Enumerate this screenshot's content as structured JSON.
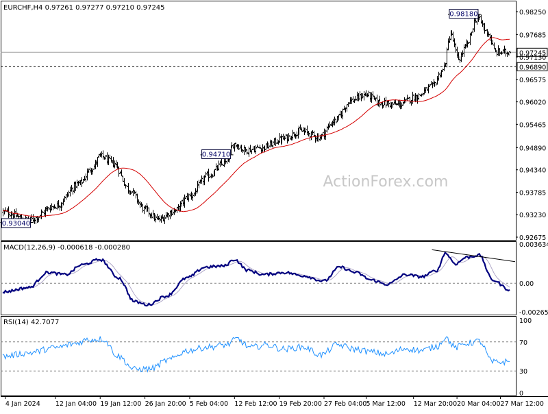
{
  "colors": {
    "background": "#ffffff",
    "frame": "#000000",
    "bars": "#000000",
    "moving_average": "#d40000",
    "macd_main": "#00007f",
    "macd_signal": "#b0a8c8",
    "rsi": "#1e90ff",
    "level_lines": "#808080",
    "watermark": "#c8c8c8"
  },
  "chart_data": [
    {
      "type": "line",
      "pane": "price",
      "title": "EURCHF,H4  0.97261 0.97277 0.97210 0.97245",
      "watermark": "ActionForex.com",
      "ylim": [
        0.92675,
        0.9825
      ],
      "yticks": [
        "0.98250",
        "0.97685",
        "0.97245",
        "0.97130",
        "0.96890",
        "0.96575",
        "0.96020",
        "0.95465",
        "0.94890",
        "0.94340",
        "0.93785",
        "0.93230",
        "0.92675"
      ],
      "current_price": {
        "value": 0.97245,
        "label": "0.97245"
      },
      "horizontal_level": {
        "value": 0.9689,
        "label": "0.96890",
        "style": "dashed"
      },
      "annotations": [
        {
          "label": "0.94710",
          "value": 0.9471,
          "at": "19 Jan 2024"
        },
        {
          "label": "0.93040",
          "value": 0.9304,
          "at": "29 Jan 2024"
        },
        {
          "label": "0.98180",
          "value": 0.9818,
          "at": "22 Mar 2024"
        }
      ],
      "anchors": [
        [
          0,
          0.933
        ],
        [
          20,
          0.931
        ],
        [
          40,
          0.9345
        ],
        [
          58,
          0.94
        ],
        [
          68,
          0.944
        ],
        [
          74,
          0.9468
        ],
        [
          84,
          0.945
        ],
        [
          96,
          0.9385
        ],
        [
          108,
          0.9335
        ],
        [
          118,
          0.931
        ],
        [
          130,
          0.9332
        ],
        [
          142,
          0.937
        ],
        [
          156,
          0.942
        ],
        [
          168,
          0.945
        ],
        [
          176,
          0.9498
        ],
        [
          184,
          0.9482
        ],
        [
          198,
          0.949
        ],
        [
          212,
          0.951
        ],
        [
          226,
          0.953
        ],
        [
          240,
          0.9515
        ],
        [
          252,
          0.9555
        ],
        [
          264,
          0.9605
        ],
        [
          276,
          0.962
        ],
        [
          286,
          0.96
        ],
        [
          300,
          0.9595
        ],
        [
          314,
          0.9615
        ],
        [
          326,
          0.964
        ],
        [
          334,
          0.968
        ],
        [
          340,
          0.977
        ],
        [
          346,
          0.9708
        ],
        [
          352,
          0.974
        ],
        [
          360,
          0.981
        ],
        [
          368,
          0.9775
        ],
        [
          374,
          0.9725
        ],
        [
          385,
          0.9724
        ]
      ],
      "ma_series": {
        "name": "",
        "period_bars": 36
      }
    },
    {
      "type": "line",
      "pane": "macd",
      "title": "MACD(12,26,9) -0.000618 -0.000280",
      "ylim": [
        -0.002652,
        0.003634
      ],
      "yticks": [
        "0.003634",
        "0.00",
        "-0.002652"
      ],
      "series": [
        {
          "name": "MACD",
          "anchors": [
            [
              0,
              -0.0008
            ],
            [
              20,
              -0.0004
            ],
            [
              34,
              0.001
            ],
            [
              48,
              0.0008
            ],
            [
              60,
              0.0017
            ],
            [
              74,
              0.0022
            ],
            [
              88,
              0.0005
            ],
            [
              100,
              -0.0017
            ],
            [
              110,
              -0.002
            ],
            [
              124,
              -0.0012
            ],
            [
              140,
              0.0005
            ],
            [
              154,
              0.0015
            ],
            [
              168,
              0.0016
            ],
            [
              176,
              0.0022
            ],
            [
              186,
              0.0012
            ],
            [
              198,
              0.0008
            ],
            [
              214,
              0.001
            ],
            [
              228,
              0.0007
            ],
            [
              244,
              0.0002
            ],
            [
              256,
              0.0015
            ],
            [
              268,
              0.001
            ],
            [
              280,
              0.0003
            ],
            [
              292,
              -0.0001
            ],
            [
              306,
              0.0008
            ],
            [
              318,
              0.0006
            ],
            [
              330,
              0.0012
            ],
            [
              336,
              0.0028
            ],
            [
              344,
              0.0018
            ],
            [
              352,
              0.0024
            ],
            [
              362,
              0.0026
            ],
            [
              372,
              0.0003
            ],
            [
              385,
              -0.0006
            ]
          ]
        },
        {
          "name": "Signal",
          "lag_bars": 9
        }
      ],
      "trendline": {
        "from": [
          326,
          0.0031
        ],
        "to": [
          385,
          0.002
        ]
      }
    },
    {
      "type": "line",
      "pane": "rsi",
      "title": "RSI(14) 42.7077",
      "ylim": [
        0,
        100
      ],
      "yticks": [
        "100",
        "70",
        "30",
        "0"
      ],
      "levels": [
        70,
        30
      ],
      "series": [
        {
          "name": "RSI",
          "anchors": [
            [
              0,
              50
            ],
            [
              20,
              55
            ],
            [
              40,
              62
            ],
            [
              56,
              68
            ],
            [
              64,
              73
            ],
            [
              76,
              74
            ],
            [
              88,
              50
            ],
            [
              100,
              32
            ],
            [
              112,
              33
            ],
            [
              126,
              45
            ],
            [
              140,
              58
            ],
            [
              156,
              63
            ],
            [
              170,
              66
            ],
            [
              178,
              74
            ],
            [
              188,
              62
            ],
            [
              200,
              66
            ],
            [
              214,
              60
            ],
            [
              228,
              63
            ],
            [
              242,
              52
            ],
            [
              254,
              66
            ],
            [
              268,
              60
            ],
            [
              280,
              56
            ],
            [
              292,
              53
            ],
            [
              306,
              61
            ],
            [
              318,
              58
            ],
            [
              330,
              64
            ],
            [
              336,
              76
            ],
            [
              344,
              62
            ],
            [
              352,
              68
            ],
            [
              362,
              71
            ],
            [
              372,
              42
            ],
            [
              385,
              42.7
            ]
          ]
        }
      ]
    }
  ],
  "x_axis": {
    "total_bars": 386,
    "labels": [
      {
        "text": "4 Jan 2024",
        "bar": 2
      },
      {
        "text": "12 Jan 04:00",
        "bar": 40
      },
      {
        "text": "19 Jan 12:00",
        "bar": 74
      },
      {
        "text": "26 Jan 20:00",
        "bar": 108
      },
      {
        "text": "5 Feb 04:00",
        "bar": 142
      },
      {
        "text": "12 Feb 12:00",
        "bar": 176
      },
      {
        "text": "19 Feb 20:00",
        "bar": 210
      },
      {
        "text": "27 Feb 04:00",
        "bar": 244
      },
      {
        "text": "5 Mar 12:00",
        "bar": 276
      },
      {
        "text": "12 Mar 20:00",
        "bar": 312
      },
      {
        "text": "20 Mar 04:00",
        "bar": 345
      },
      {
        "text": "27 Mar 12:00",
        "bar": 378
      }
    ]
  }
}
